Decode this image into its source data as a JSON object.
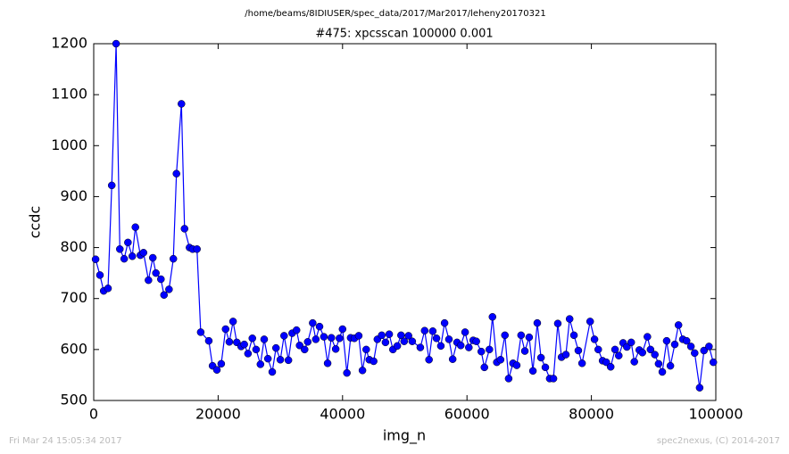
{
  "chart_data": {
    "type": "line",
    "title": "/home/beams/8IDIUSER/spec_data/2017/Mar2017/leheny20170321",
    "subtitle": "#475: xpcsscan 100000 0.001",
    "x_label": "img_n",
    "y_label": "ccdc",
    "footer_left": "Fri Mar 24 15:05:34 2017",
    "footer_right": "spec2nexus, (C) 2014-2017",
    "xlim": [
      0,
      100000
    ],
    "xticks": [
      0,
      20000,
      40000,
      60000,
      80000,
      100000
    ],
    "ylim": [
      500,
      1200
    ],
    "yticks": [
      500,
      600,
      700,
      800,
      900,
      1000,
      1100,
      1200
    ],
    "grid": false,
    "x": [
      300,
      1000,
      1600,
      2300,
      2900,
      3600,
      4200,
      4900,
      5500,
      6200,
      6700,
      7500,
      8000,
      8800,
      9500,
      10000,
      10800,
      11300,
      12100,
      12800,
      13300,
      14100,
      14600,
      15400,
      15900,
      16600,
      17200,
      18500,
      19100,
      19800,
      20500,
      21200,
      21800,
      22400,
      23000,
      23700,
      24200,
      24800,
      25500,
      26100,
      26800,
      27400,
      28000,
      28700,
      29300,
      30000,
      30600,
      31300,
      31900,
      32600,
      33100,
      33900,
      34400,
      35200,
      35700,
      36300,
      37000,
      37600,
      38200,
      38900,
      39500,
      40000,
      40700,
      41300,
      41900,
      42600,
      43200,
      43800,
      44300,
      45000,
      45600,
      46300,
      46900,
      47500,
      48100,
      48800,
      49400,
      49900,
      50600,
      51200,
      52500,
      53200,
      53900,
      54500,
      55100,
      55800,
      56400,
      57100,
      57700,
      58400,
      59000,
      59700,
      60300,
      61000,
      61500,
      62300,
      62800,
      63600,
      64100,
      64800,
      65400,
      66100,
      66700,
      67400,
      68000,
      68700,
      69300,
      70000,
      70600,
      71300,
      71900,
      72600,
      73300,
      73900,
      74600,
      75200,
      75900,
      76500,
      77200,
      77900,
      78500,
      79800,
      80500,
      81100,
      81800,
      82400,
      83100,
      83800,
      84400,
      85100,
      85700,
      86400,
      86900,
      87700,
      88200,
      89000,
      89500,
      90200,
      90800,
      91400,
      92100,
      92700,
      93400,
      94000,
      94700,
      95300,
      96000,
      96600,
      97400,
      98100,
      98900,
      99600
    ],
    "series": [
      {
        "name": "ccdc",
        "color": "#0000ff",
        "values": [
          777,
          746,
          715,
          720,
          922,
          1200,
          797,
          778,
          810,
          783,
          840,
          785,
          790,
          736,
          780,
          750,
          738,
          707,
          718,
          778,
          945,
          1082,
          837,
          800,
          797,
          797,
          634,
          617,
          568,
          560,
          572,
          640,
          615,
          655,
          614,
          606,
          610,
          592,
          622,
          600,
          571,
          620,
          582,
          556,
          603,
          580,
          627,
          579,
          632,
          638,
          608,
          600,
          615,
          652,
          620,
          645,
          625,
          573,
          623,
          601,
          622,
          640,
          554,
          623,
          622,
          627,
          559,
          600,
          580,
          577,
          620,
          628,
          614,
          630,
          600,
          607,
          628,
          616,
          627,
          616,
          604,
          637,
          580,
          636,
          622,
          607,
          652,
          620,
          581,
          614,
          608,
          634,
          604,
          618,
          616,
          596,
          565,
          600,
          664,
          575,
          580,
          628,
          543,
          573,
          569,
          628,
          597,
          624,
          558,
          652,
          584,
          565,
          543,
          543,
          651,
          585,
          590,
          660,
          628,
          598,
          573,
          655,
          620,
          600,
          578,
          575,
          566,
          600,
          588,
          613,
          605,
          614,
          576,
          599,
          594,
          625,
          600,
          590,
          572,
          556,
          617,
          568,
          610,
          648,
          620,
          617,
          606,
          593,
          525,
          598,
          606,
          575
        ]
      }
    ]
  }
}
